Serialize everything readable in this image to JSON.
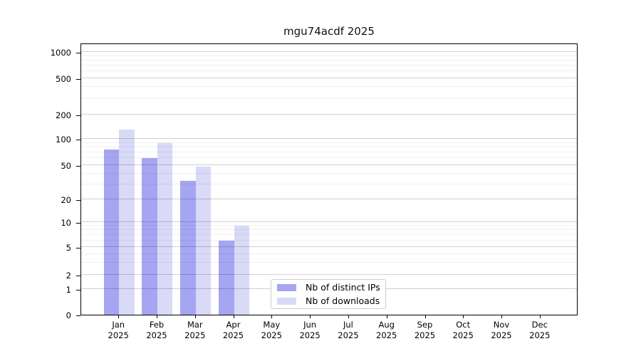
{
  "chart_data": {
    "type": "bar",
    "title": "mgu74acdf 2025",
    "categories": [
      "Jan",
      "Feb",
      "Mar",
      "Apr",
      "May",
      "Jun",
      "Jul",
      "Aug",
      "Sep",
      "Oct",
      "Nov",
      "Dec"
    ],
    "category_sublabel": "2025",
    "series": [
      {
        "name": "Nb of distinct IPs",
        "color": "#a5a5f2",
        "values": [
          75,
          60,
          33,
          6,
          0,
          0,
          0,
          0,
          0,
          0,
          0,
          0
        ]
      },
      {
        "name": "Nb of downloads",
        "color": "#d9d9f8",
        "values": [
          130,
          90,
          48,
          9,
          0,
          0,
          0,
          0,
          0,
          0,
          0,
          0
        ]
      }
    ],
    "yaxis": {
      "scale": "log-like",
      "tick_labels": [
        "0",
        "1",
        "2",
        "5",
        "10",
        "20",
        "50",
        "100",
        "200",
        "500",
        "1000"
      ],
      "tick_values": [
        0,
        1,
        2,
        5,
        10,
        20,
        50,
        100,
        200,
        500,
        1000
      ],
      "minor_gridline_values": [
        3,
        4,
        6,
        7,
        8,
        9,
        30,
        40,
        60,
        70,
        80,
        90,
        300,
        400,
        600,
        700,
        800,
        900
      ]
    },
    "grid": true,
    "legend_position": "lower-center"
  }
}
